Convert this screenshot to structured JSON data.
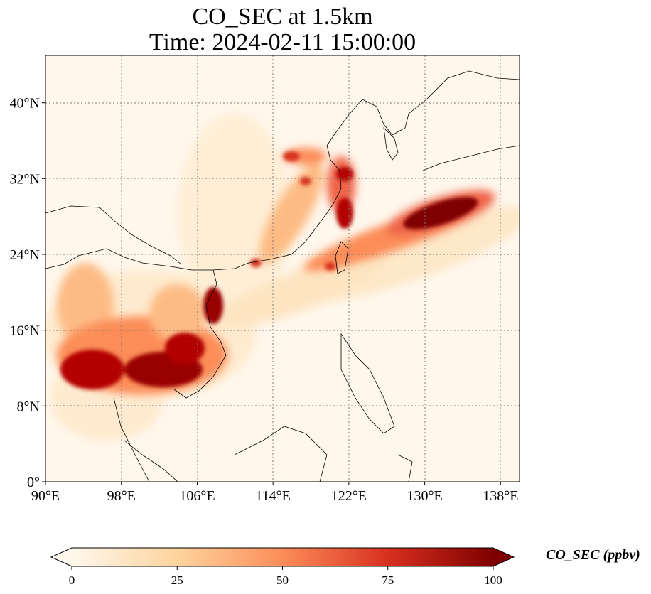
{
  "title": "CO_SEC at 1.5km",
  "subtitle": "Time: 2024-02-11 15:00:00",
  "map": {
    "lon_range": [
      90,
      140
    ],
    "lat_range": [
      0,
      45
    ],
    "lon_ticks": [
      90,
      98,
      106,
      114,
      122,
      130,
      138
    ],
    "lat_ticks": [
      0,
      8,
      16,
      24,
      32,
      40
    ],
    "lon_tick_labels": [
      "90°E",
      "98°E",
      "106°E",
      "114°E",
      "122°E",
      "130°E",
      "138°E"
    ],
    "lat_tick_labels": [
      "0°",
      "8°N",
      "16°N",
      "24°N",
      "32°N",
      "40°N"
    ],
    "gridlines": "dotted",
    "colormap": "OrRd"
  },
  "colorbar": {
    "label": "CO_SEC (ppbv)",
    "ticks": [
      "0",
      "25",
      "50",
      "75",
      "100"
    ],
    "extend": "both",
    "colors": [
      "#fff7ec",
      "#fdd49e",
      "#fc8d59",
      "#d7301f",
      "#7f0000"
    ]
  }
}
